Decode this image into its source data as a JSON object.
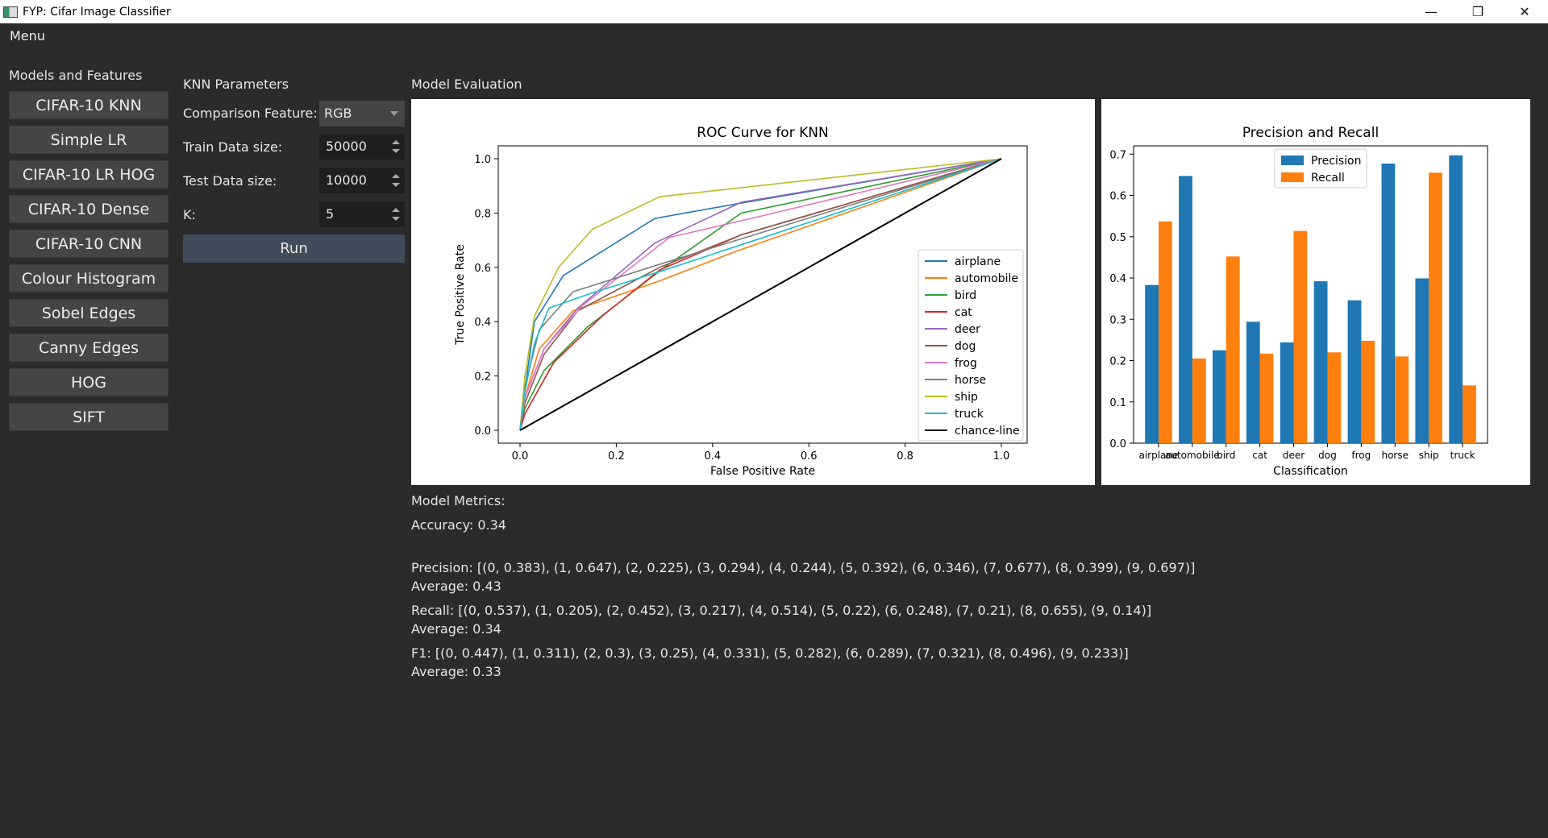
{
  "window": {
    "title": "FYP: Cifar Image Classifier",
    "controls": {
      "minimize": "—",
      "maximize": "❐",
      "close": "✕"
    }
  },
  "menu": {
    "label": "Menu"
  },
  "sidebar": {
    "heading": "Models and Features",
    "items": [
      {
        "label": "CIFAR-10 KNN"
      },
      {
        "label": "Simple LR"
      },
      {
        "label": "CIFAR-10 LR HOG"
      },
      {
        "label": "CIFAR-10 Dense"
      },
      {
        "label": "CIFAR-10 CNN"
      },
      {
        "label": "Colour Histogram"
      },
      {
        "label": "Sobel Edges"
      },
      {
        "label": "Canny Edges"
      },
      {
        "label": "HOG"
      },
      {
        "label": "SIFT"
      }
    ]
  },
  "params": {
    "heading": "KNN Parameters",
    "comparison_label": "Comparison Feature:",
    "comparison_value": "RGB",
    "train_label": "Train Data size:",
    "train_value": "50000",
    "test_label": "Test Data size:",
    "test_value": "10000",
    "k_label": "K:",
    "k_value": "5",
    "run_label": "Run"
  },
  "evaluation": {
    "heading": "Model Evaluation"
  },
  "chart_data": [
    {
      "type": "line",
      "title": "ROC Curve for KNN",
      "xlabel": "False Positive Rate",
      "ylabel": "True Positive Rate",
      "xlim": [
        0,
        1
      ],
      "ylim": [
        0,
        1
      ],
      "xticks": [
        "0.0",
        "0.2",
        "0.4",
        "0.6",
        "0.8",
        "1.0"
      ],
      "yticks": [
        "0.0",
        "0.2",
        "0.4",
        "0.6",
        "0.8",
        "1.0"
      ],
      "legend": "lower-right",
      "series": [
        {
          "name": "airplane",
          "color": "#1f77b4",
          "x": [
            0,
            0.01,
            0.03,
            0.09,
            0.28,
            0.47,
            1.0
          ],
          "y": [
            0,
            0.15,
            0.4,
            0.57,
            0.78,
            0.84,
            1.0
          ]
        },
        {
          "name": "automobile",
          "color": "#ff7f0e",
          "x": [
            0,
            0.01,
            0.04,
            0.11,
            0.29,
            0.45,
            1.0
          ],
          "y": [
            0,
            0.12,
            0.3,
            0.44,
            0.55,
            0.66,
            1.0
          ]
        },
        {
          "name": "bird",
          "color": "#2ca02c",
          "x": [
            0,
            0.01,
            0.05,
            0.14,
            0.3,
            0.46,
            1.0
          ],
          "y": [
            0,
            0.08,
            0.22,
            0.38,
            0.6,
            0.8,
            1.0
          ]
        },
        {
          "name": "cat",
          "color": "#d62728",
          "x": [
            0,
            0.01,
            0.07,
            0.17,
            0.29,
            0.46,
            1.0
          ],
          "y": [
            0,
            0.06,
            0.25,
            0.42,
            0.59,
            0.72,
            1.0
          ]
        },
        {
          "name": "deer",
          "color": "#9467bd",
          "x": [
            0,
            0.01,
            0.05,
            0.12,
            0.28,
            0.46,
            1.0
          ],
          "y": [
            0,
            0.12,
            0.3,
            0.45,
            0.69,
            0.84,
            1.0
          ]
        },
        {
          "name": "dog",
          "color": "#8c564b",
          "x": [
            0,
            0.01,
            0.05,
            0.12,
            0.29,
            0.46,
            1.0
          ],
          "y": [
            0,
            0.1,
            0.28,
            0.44,
            0.6,
            0.72,
            1.0
          ]
        },
        {
          "name": "frog",
          "color": "#e377c2",
          "x": [
            0,
            0.01,
            0.05,
            0.13,
            0.31,
            0.48,
            1.0
          ],
          "y": [
            0,
            0.12,
            0.3,
            0.46,
            0.71,
            0.78,
            1.0
          ]
        },
        {
          "name": "horse",
          "color": "#7f7f7f",
          "x": [
            0,
            0.01,
            0.04,
            0.11,
            0.27,
            0.45,
            1.0
          ],
          "y": [
            0,
            0.16,
            0.37,
            0.51,
            0.6,
            0.7,
            1.0
          ]
        },
        {
          "name": "ship",
          "color": "#bcbd22",
          "x": [
            0,
            0.01,
            0.03,
            0.08,
            0.15,
            0.29,
            1.0
          ],
          "y": [
            0,
            0.2,
            0.42,
            0.6,
            0.74,
            0.86,
            1.0
          ]
        },
        {
          "name": "truck",
          "color": "#17becf",
          "x": [
            0,
            0.01,
            0.03,
            0.06,
            0.14,
            0.3,
            1.0
          ],
          "y": [
            0,
            0.14,
            0.32,
            0.45,
            0.5,
            0.59,
            1.0
          ]
        },
        {
          "name": "chance-line",
          "color": "#000000",
          "x": [
            0,
            1.0
          ],
          "y": [
            0,
            1.0
          ]
        }
      ]
    },
    {
      "type": "bar",
      "title": "Precision and Recall",
      "xlabel": "Classification",
      "ylabel": "",
      "ylim": [
        0,
        0.72
      ],
      "yticks": [
        "0.0",
        "0.1",
        "0.2",
        "0.3",
        "0.4",
        "0.5",
        "0.6",
        "0.7"
      ],
      "legend": "top-center",
      "categories": [
        "airplane",
        "automobile",
        "bird",
        "cat",
        "deer",
        "dog",
        "frog",
        "horse",
        "ship",
        "truck"
      ],
      "series": [
        {
          "name": "Precision",
          "color": "#1f77b4",
          "values": [
            0.383,
            0.647,
            0.225,
            0.294,
            0.244,
            0.392,
            0.346,
            0.677,
            0.399,
            0.697
          ]
        },
        {
          "name": "Recall",
          "color": "#ff7f0e",
          "values": [
            0.537,
            0.205,
            0.452,
            0.217,
            0.514,
            0.22,
            0.248,
            0.21,
            0.655,
            0.14
          ]
        }
      ]
    }
  ],
  "metrics": {
    "heading": "Model Metrics:",
    "accuracy": "Accuracy: 0.34",
    "precision": "Precision: [(0, 0.383), (1, 0.647), (2, 0.225), (3, 0.294), (4, 0.244), (5, 0.392), (6, 0.346), (7, 0.677), (8, 0.399), (9, 0.697)]",
    "precision_avg": "Average: 0.43",
    "recall": "Recall: [(0, 0.537), (1, 0.205), (2, 0.452), (3, 0.217), (4, 0.514), (5, 0.22), (6, 0.248), (7, 0.21), (8, 0.655), (9, 0.14)]",
    "recall_avg": "Average: 0.34",
    "f1": "F1: [(0, 0.447), (1, 0.311), (2, 0.3), (3, 0.25), (4, 0.331), (5, 0.282), (6, 0.289), (7, 0.321), (8, 0.496), (9, 0.233)]",
    "f1_avg": "Average: 0.33"
  }
}
